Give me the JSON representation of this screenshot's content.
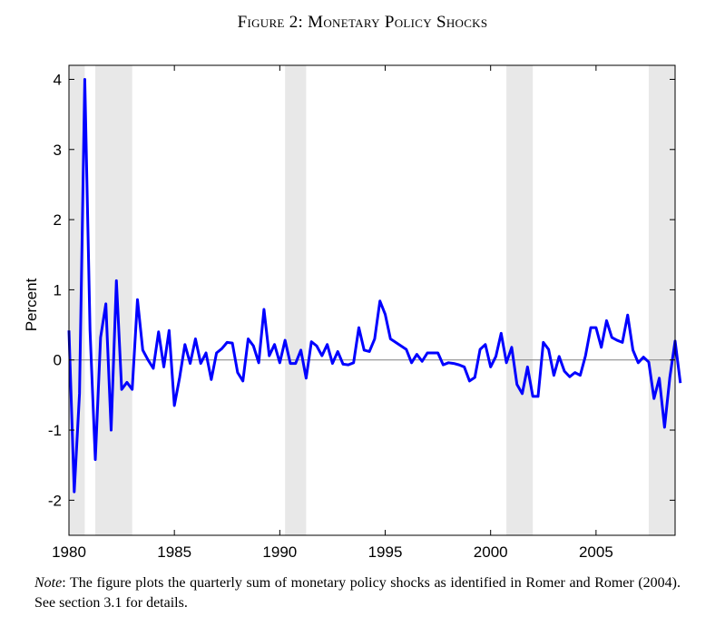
{
  "figure": {
    "title": "Figure 2: Monetary Policy Shocks",
    "note_label": "Note",
    "note_text": ": The figure plots the quarterly sum of monetary policy shocks as identified in Romer and Romer (2004). See section 3.1 for details."
  },
  "chart_data": {
    "type": "line",
    "title": "Figure 2: Monetary Policy Shocks",
    "xlabel": "",
    "ylabel": "Percent",
    "xlim": [
      1980,
      2008.75
    ],
    "ylim": [
      -2.5,
      4.2
    ],
    "x_ticks": [
      1980,
      1985,
      1990,
      1995,
      2000,
      2005
    ],
    "x_tick_labels": [
      "1980",
      "1985",
      "1990",
      "1995",
      "2000",
      "2005"
    ],
    "y_ticks": [
      -2,
      -1,
      0,
      1,
      2,
      3,
      4
    ],
    "y_tick_labels": [
      "-2",
      "-1",
      "0",
      "1",
      "2",
      "3",
      "4"
    ],
    "zero_line": true,
    "grid": false,
    "line_color": "#0000ff",
    "recession_color": "#e8e8e8",
    "recessions": [
      [
        1980.0,
        1980.75
      ],
      [
        1981.25,
        1983.0
      ],
      [
        1990.25,
        1991.25
      ],
      [
        2000.75,
        2002.0
      ],
      [
        2007.5,
        2008.75
      ]
    ],
    "x_start": 1980.0,
    "x_step": 0.25,
    "series": [
      {
        "values": [
          0.42,
          -1.88,
          -0.48,
          4.0,
          0.42,
          -1.42,
          0.32,
          0.8,
          -1.0,
          1.13,
          -0.42,
          -0.32,
          -0.42,
          0.86,
          0.14,
          0.0,
          -0.12,
          0.4,
          -0.1,
          0.42,
          -0.65,
          -0.25,
          0.22,
          -0.05,
          0.3,
          -0.05,
          0.1,
          -0.28,
          0.1,
          0.16,
          0.25,
          0.24,
          -0.18,
          -0.3,
          0.3,
          0.2,
          -0.04,
          0.72,
          0.06,
          0.22,
          -0.04,
          0.28,
          -0.05,
          -0.05,
          0.14,
          -0.26,
          0.26,
          0.2,
          0.06,
          0.22,
          -0.05,
          0.12,
          -0.06,
          -0.07,
          -0.04,
          0.46,
          0.14,
          0.12,
          0.3,
          0.84,
          0.65,
          0.3,
          0.25,
          0.2,
          0.15,
          -0.04,
          0.08,
          -0.02,
          0.1,
          0.1,
          0.1,
          -0.07,
          -0.04,
          -0.05,
          -0.07,
          -0.1,
          -0.3,
          -0.25,
          0.15,
          0.22,
          -0.1,
          0.05,
          0.38,
          -0.04,
          0.18,
          -0.35,
          -0.48,
          -0.1,
          -0.52,
          -0.52,
          0.25,
          0.15,
          -0.22,
          0.05,
          -0.16,
          -0.24,
          -0.18,
          -0.22,
          0.06,
          0.46,
          0.46,
          0.18,
          0.56,
          0.32,
          0.28,
          0.25,
          0.64,
          0.14,
          -0.04,
          0.04,
          -0.03,
          -0.55,
          -0.26,
          -0.96,
          -0.25,
          0.27,
          -0.33
        ]
      }
    ]
  }
}
